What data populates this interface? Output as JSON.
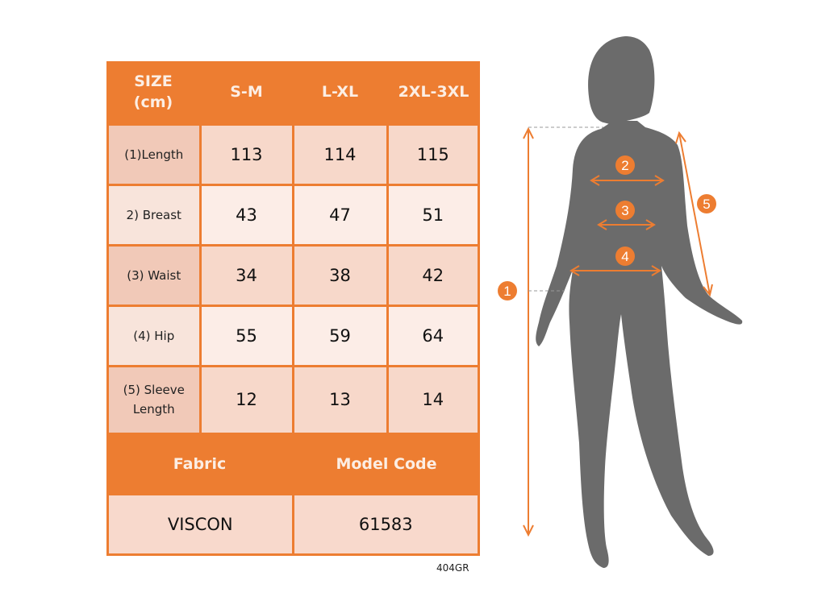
{
  "table": {
    "header": [
      "SIZE\n(cm)",
      "S-M",
      "L-XL",
      "2XL-3XL"
    ],
    "rows": [
      {
        "label": "(1)Length",
        "values": [
          "113",
          "114",
          "115"
        ]
      },
      {
        "label": "2) Breast",
        "values": [
          "43",
          "47",
          "51"
        ]
      },
      {
        "label": "(3) Waist",
        "values": [
          "34",
          "38",
          "42"
        ]
      },
      {
        "label": "(4) Hip",
        "values": [
          "55",
          "59",
          "64"
        ]
      },
      {
        "label": "(5) Sleeve\nLength",
        "values": [
          "12",
          "13",
          "14"
        ]
      }
    ],
    "footer_header": [
      "Fabric",
      "Model Code"
    ],
    "footer_values": [
      "VISCON",
      "61583"
    ]
  },
  "code_label": "404GR",
  "diagram": {
    "markers": [
      "1",
      "2",
      "3",
      "4",
      "5"
    ],
    "silhouette_color": "#6B6B6B",
    "accent_color": "#ED7D31"
  }
}
